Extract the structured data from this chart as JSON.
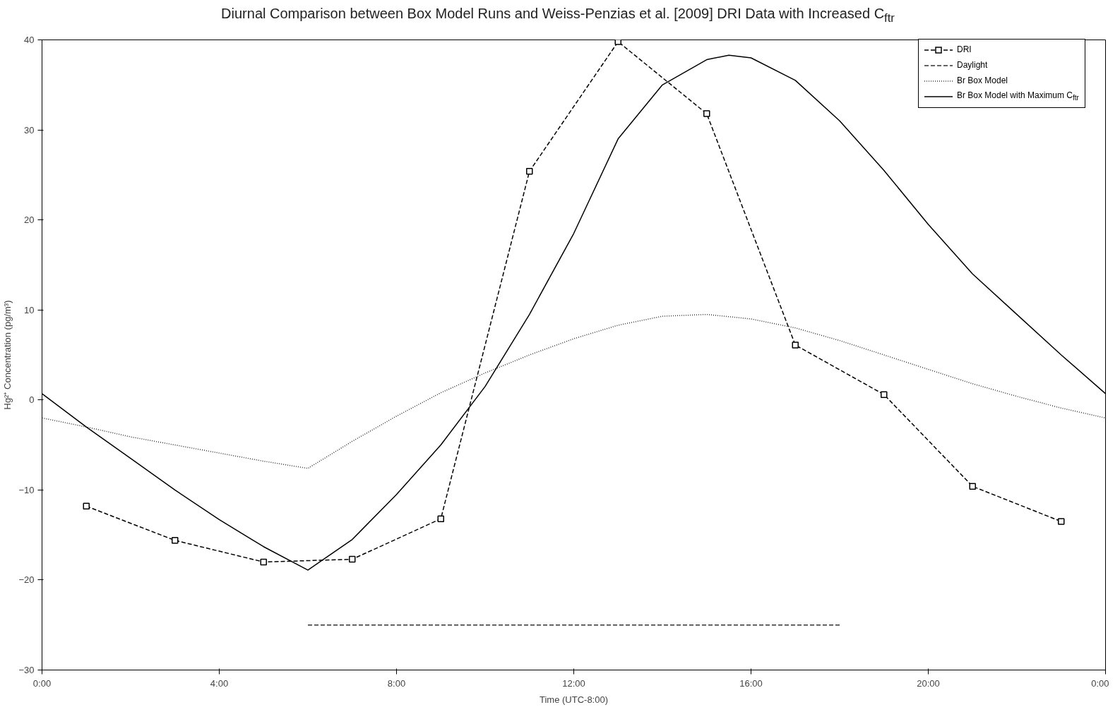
{
  "chart_data": {
    "type": "line",
    "title": "Diurnal Comparison between Box Model Runs and Weiss-Penzias et al. [2009] DRI Data with Increased C$_{ftr}$",
    "xlabel": "Time (UTC-8:00)",
    "ylabel": "Hg²⁺ Concentration (pg/m³)",
    "xlim": [
      0,
      24
    ],
    "ylim": [
      -30,
      40
    ],
    "xticks": [
      {
        "value": 0,
        "label": "0:00"
      },
      {
        "value": 4,
        "label": "4:00"
      },
      {
        "value": 8,
        "label": "8:00"
      },
      {
        "value": 12,
        "label": "12:00"
      },
      {
        "value": 16,
        "label": "16:00"
      },
      {
        "value": 20,
        "label": "20:00"
      },
      {
        "value": 24,
        "label": "0:00"
      }
    ],
    "yticks": [
      -30,
      -20,
      -10,
      0,
      10,
      20,
      30,
      40
    ],
    "grid": false,
    "legend": "top right",
    "series": [
      {
        "name": "DRI",
        "color": "#000000",
        "marker": "square",
        "line_style": "dashed",
        "x": [
          1,
          3,
          5,
          7,
          9,
          11,
          13,
          15,
          17,
          19,
          21,
          23
        ],
        "values": [
          -11.8,
          -15.6,
          -18.0,
          -17.7,
          -13.2,
          25.4,
          39.8,
          31.8,
          6.1,
          0.6,
          -9.6,
          -13.5
        ]
      },
      {
        "name": "Daylight",
        "color": "#333333",
        "marker": "none",
        "line_style": "dashed",
        "x": [
          6,
          18
        ],
        "values": [
          -25,
          -25
        ]
      },
      {
        "name": "Br Box Model",
        "color": "#333333",
        "marker": "none",
        "line_style": "dotted",
        "x": [
          0,
          1,
          2,
          3,
          4,
          5,
          6,
          7,
          8,
          9,
          10,
          11,
          12,
          13,
          14,
          15,
          16,
          17,
          18,
          19,
          20,
          21,
          22,
          23,
          24
        ],
        "values": [
          -2.0,
          -3.0,
          -4.1,
          -5.0,
          -5.9,
          -6.8,
          -7.6,
          -4.6,
          -1.8,
          0.8,
          3.0,
          5.0,
          6.8,
          8.3,
          9.3,
          9.5,
          9.0,
          8.0,
          6.6,
          5.0,
          3.4,
          1.8,
          0.4,
          -0.9,
          -2.0
        ]
      },
      {
        "name": "Br Box Model with Maximum C$_{ftr}$",
        "color": "#000000",
        "marker": "none",
        "line_style": "solid",
        "x": [
          0,
          1,
          2,
          3,
          4,
          5,
          6,
          7,
          8,
          9,
          10,
          11,
          12,
          13,
          14,
          15,
          15.5,
          16,
          17,
          18,
          19,
          20,
          21,
          22,
          23,
          24
        ],
        "values": [
          0.7,
          -3.0,
          -6.5,
          -10.0,
          -13.3,
          -16.3,
          -18.9,
          -15.5,
          -10.5,
          -5.0,
          1.5,
          9.5,
          18.5,
          29.0,
          35.0,
          37.8,
          38.3,
          38.0,
          35.5,
          31.0,
          25.5,
          19.5,
          14.0,
          9.5,
          5.0,
          0.7
        ]
      }
    ]
  }
}
